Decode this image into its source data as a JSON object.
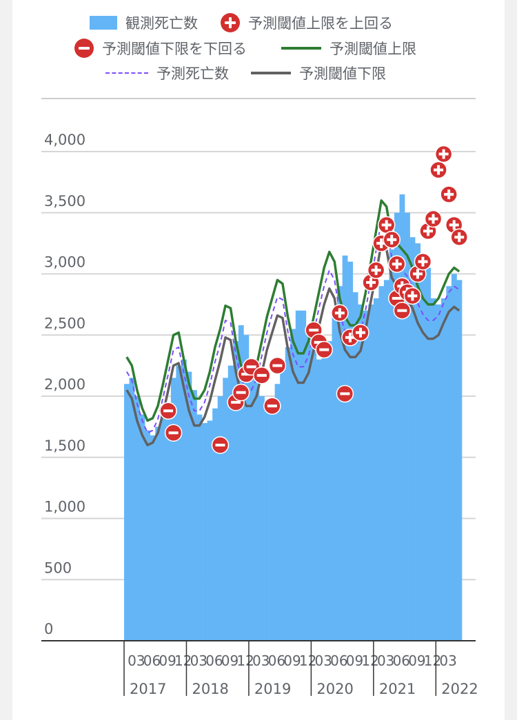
{
  "legend": {
    "observed": "観測死亡数",
    "above_upper": "予測閾値上限を上回る",
    "below_lower": "予測閾値下限を下回る",
    "upper": "予測閾値上限",
    "predicted": "予測死亡数",
    "lower": "予測閾値下限"
  },
  "colors": {
    "observed": "#64b5f6",
    "upper": "#2e7d32",
    "predicted": "#7c4dff",
    "lower": "#616161",
    "marker": "#d32f2f"
  },
  "chart_data": {
    "type": "bar",
    "ylim": [
      0,
      4000
    ],
    "yticks": [
      "0",
      "500",
      "1,000",
      "1,500",
      "2,000",
      "2,500",
      "3,000",
      "3,500",
      "4,000"
    ],
    "x_start": "2017-01",
    "x_end": "2022-05",
    "month_tick_labels": [
      "03",
      "06",
      "09",
      "12"
    ],
    "year_labels": [
      "2017",
      "2018",
      "2019",
      "2020",
      "2021",
      "2022"
    ],
    "months": [
      "2017-01",
      "2017-02",
      "2017-03",
      "2017-04",
      "2017-05",
      "2017-06",
      "2017-07",
      "2017-08",
      "2017-09",
      "2017-10",
      "2017-11",
      "2017-12",
      "2018-01",
      "2018-02",
      "2018-03",
      "2018-04",
      "2018-05",
      "2018-06",
      "2018-07",
      "2018-08",
      "2018-09",
      "2018-10",
      "2018-11",
      "2018-12",
      "2019-01",
      "2019-02",
      "2019-03",
      "2019-04",
      "2019-05",
      "2019-06",
      "2019-07",
      "2019-08",
      "2019-09",
      "2019-10",
      "2019-11",
      "2019-12",
      "2020-01",
      "2020-02",
      "2020-03",
      "2020-04",
      "2020-05",
      "2020-06",
      "2020-07",
      "2020-08",
      "2020-09",
      "2020-10",
      "2020-11",
      "2020-12",
      "2021-01",
      "2021-02",
      "2021-03",
      "2021-04",
      "2021-05",
      "2021-06",
      "2021-07",
      "2021-08",
      "2021-09",
      "2021-10",
      "2021-11",
      "2021-12",
      "2022-01",
      "2022-02",
      "2022-03",
      "2022-04",
      "2022-05"
    ],
    "series": [
      {
        "name": "観測死亡数",
        "kind": "bar",
        "values": [
          2100,
          2150,
          2000,
          1850,
          1720,
          1680,
          1750,
          1850,
          1950,
          2150,
          2250,
          2300,
          2200,
          2050,
          1850,
          1780,
          1800,
          1900,
          2000,
          2150,
          2250,
          2450,
          2580,
          2500,
          2300,
          2150,
          2000,
          1950,
          1950,
          2100,
          2250,
          2400,
          2550,
          2700,
          2700,
          2550,
          2400,
          2300,
          2350,
          2450,
          2650,
          2900,
          3150,
          3100,
          2850,
          2750,
          2700,
          2750,
          2800,
          2900,
          2950,
          3200,
          3500,
          3650,
          3500,
          3300,
          3250,
          3150,
          3050,
          2800,
          2750,
          2800,
          2900,
          3000,
          2950
        ]
      },
      {
        "name": "予測閾値上限",
        "kind": "line",
        "values": [
          2320,
          2250,
          2050,
          1900,
          1800,
          1820,
          1920,
          2100,
          2300,
          2500,
          2520,
          2300,
          2100,
          1980,
          1980,
          2050,
          2200,
          2400,
          2550,
          2740,
          2720,
          2450,
          2250,
          2150,
          2150,
          2250,
          2450,
          2650,
          2800,
          2950,
          2920,
          2650,
          2450,
          2350,
          2350,
          2450,
          2650,
          2850,
          3050,
          3180,
          3100,
          2800,
          2650,
          2580,
          2580,
          2650,
          2850,
          3100,
          3350,
          3600,
          3550,
          3300,
          3250,
          3200,
          3150,
          3050,
          2900,
          2800,
          2750,
          2750,
          2800,
          2900,
          3000,
          3050,
          3020
        ]
      },
      {
        "name": "予測死亡数",
        "kind": "line",
        "values": [
          2200,
          2130,
          1940,
          1800,
          1700,
          1720,
          1810,
          1990,
          2180,
          2380,
          2400,
          2190,
          2000,
          1880,
          1880,
          1950,
          2090,
          2280,
          2430,
          2620,
          2600,
          2340,
          2150,
          2050,
          2050,
          2140,
          2330,
          2520,
          2670,
          2810,
          2790,
          2530,
          2340,
          2240,
          2240,
          2330,
          2520,
          2720,
          2900,
          3030,
          2950,
          2680,
          2530,
          2460,
          2460,
          2520,
          2710,
          2950,
          3190,
          3430,
          3380,
          3140,
          3080,
          3030,
          2980,
          2890,
          2760,
          2670,
          2620,
          2620,
          2660,
          2760,
          2850,
          2900,
          2870
        ]
      },
      {
        "name": "予測閾値下限",
        "kind": "line",
        "values": [
          2050,
          1980,
          1800,
          1680,
          1600,
          1620,
          1700,
          1860,
          2050,
          2250,
          2270,
          2070,
          1880,
          1760,
          1760,
          1830,
          1960,
          2130,
          2290,
          2480,
          2460,
          2200,
          2020,
          1920,
          1920,
          2000,
          2190,
          2380,
          2520,
          2660,
          2640,
          2390,
          2200,
          2110,
          2110,
          2190,
          2380,
          2570,
          2750,
          2880,
          2800,
          2530,
          2380,
          2320,
          2320,
          2370,
          2550,
          2780,
          3000,
          3250,
          3200,
          2970,
          2900,
          2850,
          2800,
          2720,
          2600,
          2520,
          2470,
          2470,
          2500,
          2600,
          2690,
          2730,
          2700
        ]
      }
    ],
    "above_upper_points": [
      {
        "month": "2020-06",
        "value": 2680
      },
      {
        "month": "2020-08",
        "value": 2480
      },
      {
        "month": "2020-10",
        "value": 2520
      },
      {
        "month": "2020-12",
        "value": 2930
      },
      {
        "month": "2021-01",
        "value": 3030
      },
      {
        "month": "2021-02",
        "value": 3250
      },
      {
        "month": "2021-03",
        "value": 3400
      },
      {
        "month": "2021-04",
        "value": 3280
      },
      {
        "month": "2021-05",
        "value": 3080
      },
      {
        "month": "2021-06",
        "value": 2900
      },
      {
        "month": "2021-07",
        "value": 2850
      },
      {
        "month": "2021-08",
        "value": 2820
      },
      {
        "month": "2021-09",
        "value": 3000
      },
      {
        "month": "2021-10",
        "value": 3100
      },
      {
        "month": "2021-11",
        "value": 3350
      },
      {
        "month": "2021-12",
        "value": 3450
      },
      {
        "month": "2022-01",
        "value": 3850
      },
      {
        "month": "2022-02",
        "value": 3980
      },
      {
        "month": "2022-03",
        "value": 3650
      },
      {
        "month": "2022-04",
        "value": 3400
      },
      {
        "month": "2022-05",
        "value": 3300
      }
    ],
    "below_lower_points": [
      {
        "month": "2017-09",
        "value": 1880
      },
      {
        "month": "2017-10",
        "value": 1700
      },
      {
        "month": "2018-07",
        "value": 1600
      },
      {
        "month": "2018-10",
        "value": 1950
      },
      {
        "month": "2018-11",
        "value": 2030
      },
      {
        "month": "2018-12",
        "value": 2180
      },
      {
        "month": "2019-01",
        "value": 2240
      },
      {
        "month": "2019-03",
        "value": 2170
      },
      {
        "month": "2019-05",
        "value": 1920
      },
      {
        "month": "2019-06",
        "value": 2250
      },
      {
        "month": "2020-01",
        "value": 2540
      },
      {
        "month": "2020-02",
        "value": 2440
      },
      {
        "month": "2020-03",
        "value": 2380
      },
      {
        "month": "2020-07",
        "value": 2020
      },
      {
        "month": "2021-05",
        "value": 2800
      },
      {
        "month": "2021-06",
        "value": 2700
      }
    ]
  }
}
